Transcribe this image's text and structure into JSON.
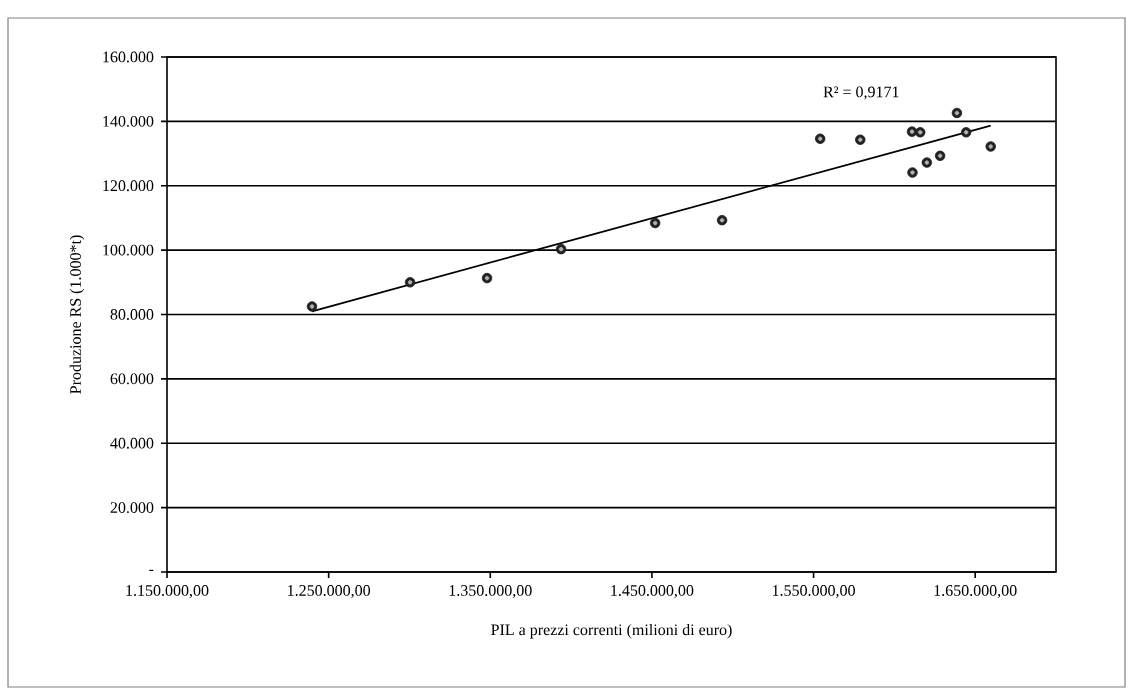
{
  "chart_data": {
    "type": "scatter",
    "xlabel": "PIL a prezzi correnti (milioni di euro)",
    "ylabel": "Produzione RS (1.000*t)",
    "annotations": [
      "R² = 0,9171"
    ],
    "xlim": [
      1150000,
      1700000
    ],
    "ylim": [
      0,
      160000
    ],
    "xticks": [
      {
        "value": 1150000,
        "label": "1.150.000,00"
      },
      {
        "value": 1250000,
        "label": "1.250.000,00"
      },
      {
        "value": 1350000,
        "label": "1.350.000,00"
      },
      {
        "value": 1450000,
        "label": "1.450.000,00"
      },
      {
        "value": 1550000,
        "label": "1.550.000,00"
      },
      {
        "value": 1650000,
        "label": "1.650.000,00"
      }
    ],
    "yticks": [
      {
        "value": 0,
        "label": "-"
      },
      {
        "value": 20000,
        "label": "20.000"
      },
      {
        "value": 40000,
        "label": "40.000"
      },
      {
        "value": 60000,
        "label": "60.000"
      },
      {
        "value": 80000,
        "label": "80.000"
      },
      {
        "value": 100000,
        "label": "100.000"
      },
      {
        "value": 120000,
        "label": "120.000"
      },
      {
        "value": 140000,
        "label": "140.000"
      },
      {
        "value": 160000,
        "label": "160.000"
      }
    ],
    "grid": "y",
    "series": [
      {
        "marker": "circle",
        "color": "#222222",
        "x": [
          1239700,
          1300400,
          1348000,
          1393800,
          1452000,
          1493400,
          1554100,
          1578900,
          1610900,
          1616000,
          1638700,
          1644400,
          1659600,
          1628300,
          1620100,
          1611200
        ],
        "values": [
          82500,
          90000,
          91300,
          100300,
          108400,
          109300,
          134600,
          134300,
          136800,
          136600,
          142600,
          136600,
          132200,
          129300,
          127200,
          124100
        ]
      },
      {
        "type": "line",
        "marker": "none",
        "color": "#000000",
        "x": [
          1239700,
          1659600
        ],
        "values": [
          81000,
          138700
        ]
      }
    ]
  }
}
